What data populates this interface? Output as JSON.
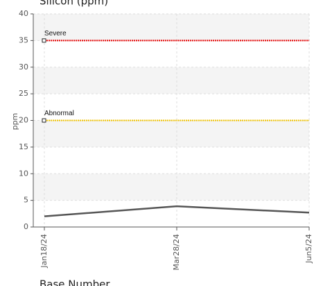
{
  "chart_data": {
    "type": "line",
    "title": "Silicon (ppm)",
    "y_label": "ppm",
    "footer": "Base Number",
    "categories": [
      "Jan18/24",
      "Mar28/24",
      "Jun5/24"
    ],
    "series": [
      {
        "color": "#555555",
        "values": [
          2,
          3.9,
          2.7
        ]
      }
    ],
    "thresholds": [
      {
        "name": "Severe",
        "value": 35,
        "color": "#e60000"
      },
      {
        "name": "Abnormal",
        "value": 20,
        "color": "#f2c500"
      }
    ],
    "ylim": [
      0,
      40
    ],
    "yticks": [
      0,
      5,
      10,
      15,
      20,
      25,
      30,
      35,
      40
    ],
    "grid": true
  }
}
